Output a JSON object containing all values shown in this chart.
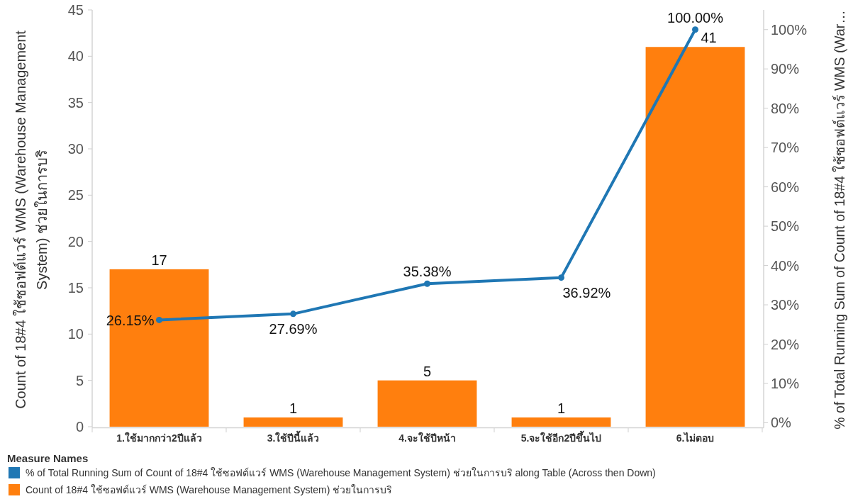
{
  "chart_data": {
    "type": "bar",
    "categories": [
      "1.ใช้มากกว่า2ปีแล้ว",
      "3.ใช้ปีนี้แล้ว",
      "4.จะใช้ปีหน้า",
      "5.จะใช้อีก2ปีขึ้นไป",
      "6.ไม่ตอบ"
    ],
    "ylabel": "Count of 18#4 ใช้ซอฟต์แวร์ WMS (Warehouse Management System) ช่วยในการบริ",
    "y2label": "% of Total Running Sum of Count of 18#4 ใช้ซอฟต์แวร์ WMS (War…",
    "legend_title": "Measure Names",
    "legend": "bottom",
    "marker": "circle",
    "line_style": "solid",
    "ylim": [
      0,
      45
    ],
    "yticks": [
      0,
      5,
      10,
      15,
      20,
      25,
      30,
      35,
      40,
      45
    ],
    "y2lim": [
      -1,
      105
    ],
    "y2ticks": [
      {
        "value": 0,
        "label": "0%"
      },
      {
        "value": 10,
        "label": "10%"
      },
      {
        "value": 20,
        "label": "20%"
      },
      {
        "value": 30,
        "label": "30%"
      },
      {
        "value": 40,
        "label": "40%"
      },
      {
        "value": 50,
        "label": "50%"
      },
      {
        "value": 60,
        "label": "60%"
      },
      {
        "value": 70,
        "label": "70%"
      },
      {
        "value": 80,
        "label": "80%"
      },
      {
        "value": 90,
        "label": "90%"
      },
      {
        "value": 100,
        "label": "100%"
      }
    ],
    "series": [
      {
        "name": "% of Total Running Sum of Count of 18#4 ใช้ซอฟต์แวร์ WMS (Warehouse Management System) ช่วยในการบริ along Table (Across then Down)",
        "type": "line",
        "axis": "y2",
        "color": "#1f77b4",
        "values": [
          26.15,
          27.69,
          35.38,
          36.92,
          100.0
        ],
        "value_labels": [
          "26.15%",
          "27.69%",
          "35.38%",
          "36.92%",
          "100.00%"
        ]
      },
      {
        "name": "Count of 18#4 ใช้ซอฟต์แวร์ WMS (Warehouse Management System) ช่วยในการบริ",
        "color": "#ff7f0e",
        "values": [
          17,
          1,
          5,
          1,
          41
        ],
        "value_labels": [
          "17",
          "1",
          "5",
          "1",
          "41"
        ]
      }
    ]
  }
}
